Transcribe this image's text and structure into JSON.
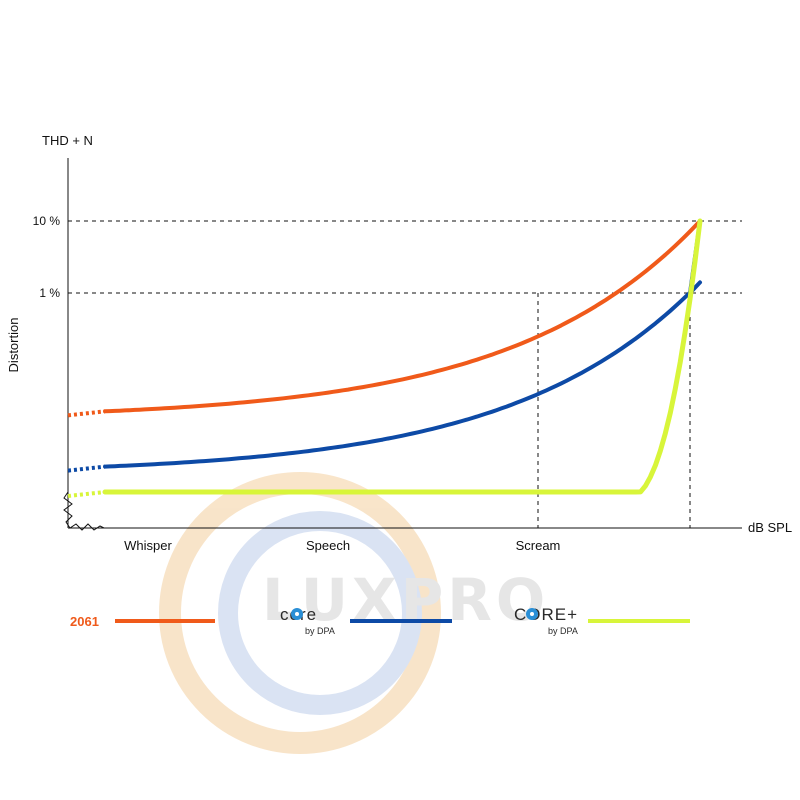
{
  "chart_data": {
    "type": "line",
    "y_axis_title": "THD + N",
    "ylabel": "Distortion",
    "xlabel": "dB SPL",
    "y_ticks": [
      "10 %",
      "1 %"
    ],
    "y_scale": "log",
    "categories": [
      "Whisper",
      "Speech",
      "Scream"
    ],
    "grid": "dashed reference lines at 10 % and 1 %",
    "series": [
      {
        "name": "2061",
        "color": "#f05a1a",
        "curve": "exponential",
        "min_level": 0.38,
        "max_level": 1.0
      },
      {
        "name": "core by DPA",
        "color": "#0d4aa6",
        "curve": "exponential",
        "min_level": 0.2,
        "max_level": 0.8
      },
      {
        "name": "CORE+ by DPA",
        "color": "#d8f53a",
        "curve": "flat-then-steep",
        "min_level": 0.1,
        "max_level": 1.0
      }
    ],
    "legend_placement": "bottom"
  },
  "legend": {
    "item1": "2061",
    "item2_logo": "core",
    "item2_sub": "by DPA",
    "item3_logo": "CORE+",
    "item3_sub": "by DPA"
  },
  "watermark": "LUXPRO",
  "colors": {
    "orange": "#f05a1a",
    "blue": "#0d4aa6",
    "yellow": "#d8f53a",
    "logo_blue": "#2a8fd6",
    "watermark_ring_orange": "#f7dcb8",
    "watermark_ring_blue": "#cfdaf0"
  }
}
